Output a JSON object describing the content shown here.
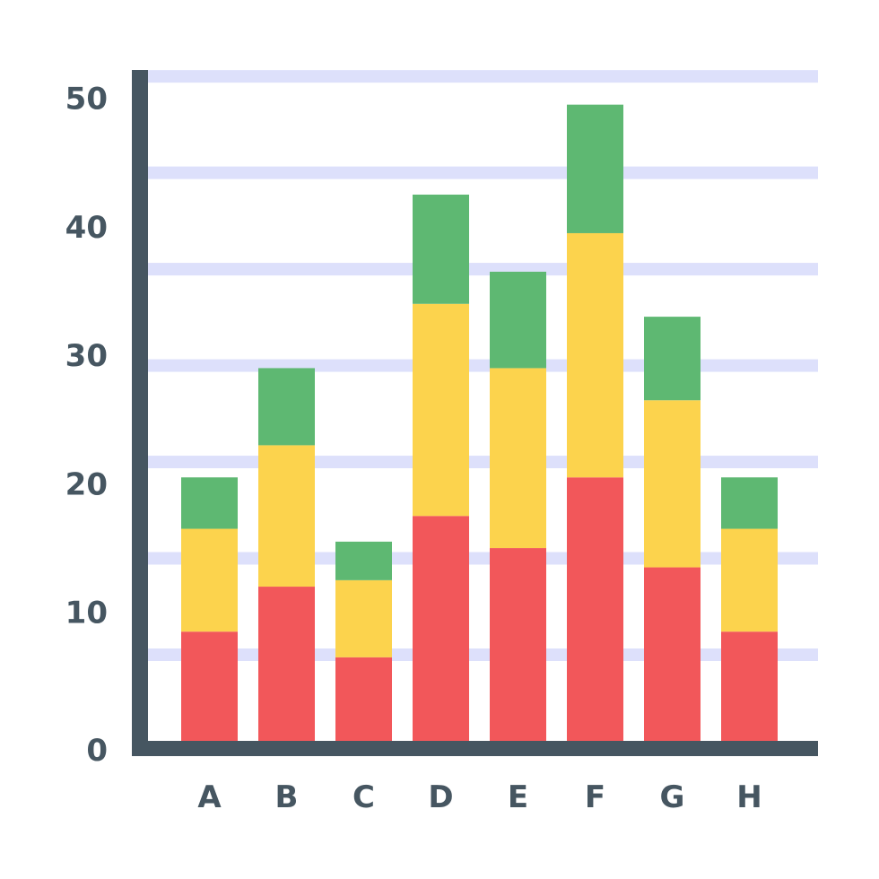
{
  "chart_data": {
    "type": "bar",
    "stacked": true,
    "categories": [
      "A",
      "B",
      "C",
      "D",
      "E",
      "F",
      "G",
      "H"
    ],
    "series": [
      {
        "values": [
          8.5,
          12,
          6.5,
          17.5,
          15,
          20.5,
          13.5,
          8.5
        ]
      },
      {
        "values": [
          8,
          11,
          6,
          16.5,
          14,
          19,
          13,
          8
        ]
      },
      {
        "values": [
          4,
          6,
          3,
          8.5,
          7.5,
          10,
          6.5,
          4
        ]
      }
    ],
    "ylim": [
      0,
      50
    ],
    "yticks": [
      "0",
      "10",
      "20",
      "30",
      "40",
      "50"
    ],
    "gridlines": true,
    "legend": false
  },
  "colors": {
    "series": [
      "#f2575a",
      "#fcd34d",
      "#5eb872"
    ],
    "axis": "#465661",
    "grid": "#dde0fb",
    "text": "#465661"
  }
}
